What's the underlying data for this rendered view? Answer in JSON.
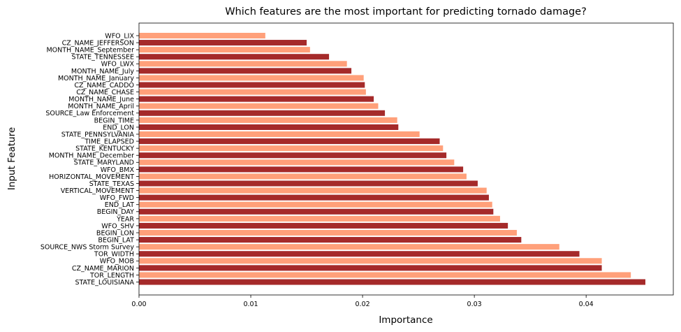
{
  "chart_data": {
    "type": "bar",
    "orientation": "horizontal",
    "title": "Which features are the most important for predicting tornado damage?",
    "xlabel": "Importance",
    "ylabel": "Input Feature",
    "xlim": [
      0,
      0.0478
    ],
    "xticks": [
      0,
      0.01,
      0.02,
      0.03,
      0.04
    ],
    "xtick_labels": [
      "0.00",
      "0.01",
      "0.02",
      "0.03",
      "0.04"
    ],
    "grid": false,
    "colors": [
      "#a52a2a",
      "#ffa07a"
    ],
    "categories": [
      "STATE_LOUISIANA",
      "TOR_LENGTH",
      "CZ_NAME_MARION",
      "WFO_MOB",
      "TOR_WIDTH",
      "SOURCE_NWS Storm Survey",
      "BEGIN_LAT",
      "BEGIN_LON",
      "WFO_SHV",
      "YEAR",
      "BEGIN_DAY",
      "END_LAT",
      "WFO_FWD",
      "VERTICAL_MOVEMENT",
      "STATE_TEXAS",
      "HORIZONTAL_MOVEMENT",
      "WFO_BMX",
      "STATE_MARYLAND",
      "MONTH_NAME_December",
      "STATE_KENTUCKY",
      "TIME_ELAPSED",
      "STATE_PENNSYLVANIA",
      "END_LON",
      "BEGIN_TIME",
      "SOURCE_Law Enforcement",
      "MONTH_NAME_April",
      "MONTH_NAME_June",
      "CZ_NAME_CHASE",
      "CZ_NAME_CADDO",
      "MONTH_NAME_January",
      "MONTH_NAME_July",
      "WFO_LWX",
      "STATE_TENNESSEE",
      "MONTH_NAME_September",
      "CZ_NAME_JEFFERSON",
      "WFO_LIX"
    ],
    "values": [
      0.0453,
      0.044,
      0.0414,
      0.0414,
      0.0394,
      0.0376,
      0.0342,
      0.0338,
      0.033,
      0.0323,
      0.0317,
      0.0316,
      0.0313,
      0.0311,
      0.0303,
      0.0293,
      0.029,
      0.0282,
      0.0275,
      0.0272,
      0.0269,
      0.0251,
      0.0232,
      0.0231,
      0.022,
      0.0214,
      0.021,
      0.0203,
      0.0202,
      0.0201,
      0.019,
      0.0186,
      0.017,
      0.0153,
      0.015,
      0.0113
    ]
  }
}
